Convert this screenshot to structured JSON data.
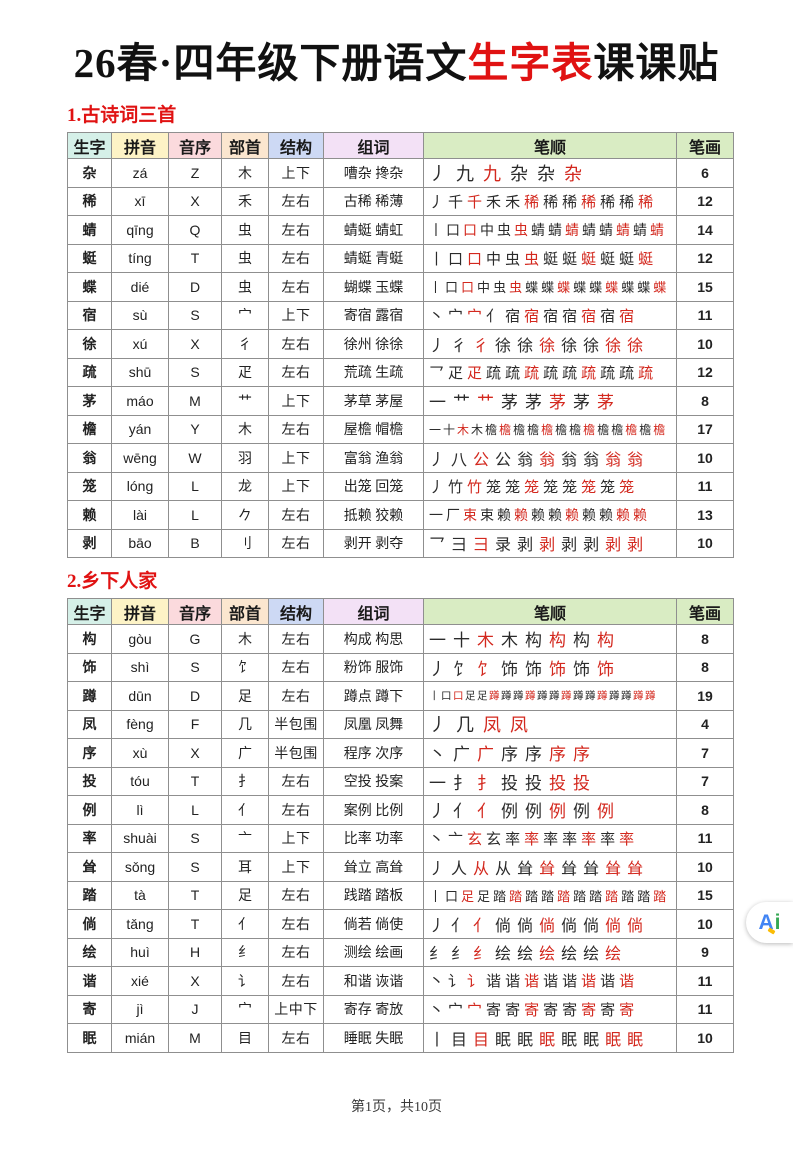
{
  "page": {
    "title_prefix": "26春·四年级下册语文",
    "title_highlight": "生字表",
    "title_suffix": "课课贴",
    "footer": "第1页，共10页",
    "badge_a": "A",
    "badge_i": "i"
  },
  "colors": {
    "title_red": "#e01212",
    "char_red": "#e02020",
    "pinyin_blue": "#3f9ee8",
    "count_red": "#e5463a",
    "stroke_dark": "#2b2b2b",
    "stroke_red": "#d3281e",
    "header_bg": [
      "#d5f0e8",
      "#fdf3c6",
      "#fbdadd",
      "#fbe6cf",
      "#cdd9f4",
      "#f3e1f6",
      "#d9ecc3",
      "#d9ecc3"
    ]
  },
  "table_headers": [
    "生字",
    "拼音",
    "音序",
    "部首",
    "结构",
    "组词",
    "笔顺",
    "笔画"
  ],
  "sections": [
    {
      "title": "1.古诗词三首",
      "rows": [
        {
          "char": "杂",
          "pinyin": "zá",
          "initial": "Z",
          "radical": "木",
          "structure": "上下",
          "words": "嘈杂 搀杂",
          "stroke_seq": "丿九九杂杂杂",
          "strokes": "6"
        },
        {
          "char": "稀",
          "pinyin": "xī",
          "initial": "X",
          "radical": "禾",
          "structure": "左右",
          "words": "古稀 稀薄",
          "stroke_seq": "丿千千禾禾稀稀稀稀稀稀稀",
          "strokes": "12"
        },
        {
          "char": "蜻",
          "pinyin": "qīng",
          "initial": "Q",
          "radical": "虫",
          "structure": "左右",
          "words": "蜻蜓 蜻虹",
          "stroke_seq": "丨口口中虫虫蜻蜻蜻蜻蜻蜻蜻蜻",
          "strokes": "14"
        },
        {
          "char": "蜓",
          "pinyin": "tíng",
          "initial": "T",
          "radical": "虫",
          "structure": "左右",
          "words": "蜻蜓 青蜓",
          "stroke_seq": "丨口口中虫虫蜓蜓蜓蜓蜓蜓",
          "strokes": "12"
        },
        {
          "char": "蝶",
          "pinyin": "dié",
          "initial": "D",
          "radical": "虫",
          "structure": "左右",
          "words": "蝴蝶 玉蝶",
          "stroke_seq": "丨口口中虫虫蝶蝶蝶蝶蝶蝶蝶蝶蝶",
          "strokes": "15"
        },
        {
          "char": "宿",
          "pinyin": "sù",
          "initial": "S",
          "radical": "宀",
          "structure": "上下",
          "words": "寄宿 露宿",
          "stroke_seq": "丶宀宀亻宿宿宿宿宿宿宿",
          "strokes": "11"
        },
        {
          "char": "徐",
          "pinyin": "xú",
          "initial": "X",
          "radical": "彳",
          "structure": "左右",
          "words": "徐州 徐徐",
          "stroke_seq": "丿彳彳徐徐徐徐徐徐徐",
          "strokes": "10"
        },
        {
          "char": "疏",
          "pinyin": "shū",
          "initial": "S",
          "radical": "疋",
          "structure": "左右",
          "words": "荒疏 生疏",
          "stroke_seq": "乛疋疋疏疏疏疏疏疏疏疏疏",
          "strokes": "12"
        },
        {
          "char": "茅",
          "pinyin": "máo",
          "initial": "M",
          "radical": "艹",
          "structure": "上下",
          "words": "茅草 茅屋",
          "stroke_seq": "一艹艹茅茅茅茅茅",
          "strokes": "8"
        },
        {
          "char": "檐",
          "pinyin": "yán",
          "initial": "Y",
          "radical": "木",
          "structure": "左右",
          "words": "屋檐 帽檐",
          "stroke_seq": "一十木木檐檐檐檐檐檐檐檐檐檐檐檐檐",
          "strokes": "17"
        },
        {
          "char": "翁",
          "pinyin": "wēng",
          "initial": "W",
          "radical": "羽",
          "structure": "上下",
          "words": "富翁 渔翁",
          "stroke_seq": "丿八公公翁翁翁翁翁翁",
          "strokes": "10"
        },
        {
          "char": "笼",
          "pinyin": "lóng",
          "initial": "L",
          "radical": "龙",
          "structure": "上下",
          "words": "出笼 回笼",
          "stroke_seq": "丿竹竹笼笼笼笼笼笼笼笼",
          "strokes": "11"
        },
        {
          "char": "赖",
          "pinyin": "lài",
          "initial": "L",
          "radical": "𠂊",
          "structure": "左右",
          "words": "抵赖 狡赖",
          "stroke_seq": "一厂束束赖赖赖赖赖赖赖赖赖",
          "strokes": "13"
        },
        {
          "char": "剥",
          "pinyin": "bāo",
          "initial": "B",
          "radical": "刂",
          "structure": "左右",
          "words": "剥开 剥夺",
          "stroke_seq": "乛彐彐录剥剥剥剥剥剥",
          "strokes": "10"
        }
      ]
    },
    {
      "title": "2.乡下人家",
      "rows": [
        {
          "char": "构",
          "pinyin": "gòu",
          "initial": "G",
          "radical": "木",
          "structure": "左右",
          "words": "构成 构思",
          "stroke_seq": "一十木木构构构构",
          "strokes": "8"
        },
        {
          "char": "饰",
          "pinyin": "shì",
          "initial": "S",
          "radical": "饣",
          "structure": "左右",
          "words": "粉饰 服饰",
          "stroke_seq": "丿饣饣饰饰饰饰饰",
          "strokes": "8"
        },
        {
          "char": "蹲",
          "pinyin": "dūn",
          "initial": "D",
          "radical": "足",
          "structure": "左右",
          "words": "蹲点 蹲下",
          "stroke_seq": "丨口口足足蹲蹲蹲蹲蹲蹲蹲蹲蹲蹲蹲蹲蹲蹲",
          "strokes": "19"
        },
        {
          "char": "凤",
          "pinyin": "fèng",
          "initial": "F",
          "radical": "几",
          "structure": "半包围",
          "words": "凤凰 凤舞",
          "stroke_seq": "丿几凤凤",
          "strokes": "4"
        },
        {
          "char": "序",
          "pinyin": "xù",
          "initial": "X",
          "radical": "广",
          "structure": "半包围",
          "words": "程序 次序",
          "stroke_seq": "丶广广序序序序",
          "strokes": "7"
        },
        {
          "char": "投",
          "pinyin": "tóu",
          "initial": "T",
          "radical": "扌",
          "structure": "左右",
          "words": "空投 投案",
          "stroke_seq": "一扌扌投投投投",
          "strokes": "7"
        },
        {
          "char": "例",
          "pinyin": "lì",
          "initial": "L",
          "radical": "亻",
          "structure": "左右",
          "words": "案例 比例",
          "stroke_seq": "丿亻亻例例例例例",
          "strokes": "8"
        },
        {
          "char": "率",
          "pinyin": "shuài",
          "initial": "S",
          "radical": "亠",
          "structure": "上下",
          "words": "比率 功率",
          "stroke_seq": "丶亠玄玄率率率率率率率",
          "strokes": "11"
        },
        {
          "char": "耸",
          "pinyin": "sǒng",
          "initial": "S",
          "radical": "耳",
          "structure": "上下",
          "words": "耸立 高耸",
          "stroke_seq": "丿人从从耸耸耸耸耸耸",
          "strokes": "10"
        },
        {
          "char": "踏",
          "pinyin": "tà",
          "initial": "T",
          "radical": "足",
          "structure": "左右",
          "words": "践踏 踏板",
          "stroke_seq": "丨口足足踏踏踏踏踏踏踏踏踏踏踏",
          "strokes": "15"
        },
        {
          "char": "倘",
          "pinyin": "tǎng",
          "initial": "T",
          "radical": "亻",
          "structure": "左右",
          "words": "倘若 倘使",
          "stroke_seq": "丿亻亻倘倘倘倘倘倘倘",
          "strokes": "10"
        },
        {
          "char": "绘",
          "pinyin": "huì",
          "initial": "H",
          "radical": "纟",
          "structure": "左右",
          "words": "测绘 绘画",
          "stroke_seq": "纟纟纟绘绘绘绘绘绘",
          "strokes": "9"
        },
        {
          "char": "谐",
          "pinyin": "xié",
          "initial": "X",
          "radical": "讠",
          "structure": "左右",
          "words": "和谐 诙谐",
          "stroke_seq": "丶讠讠谐谐谐谐谐谐谐谐",
          "strokes": "11"
        },
        {
          "char": "寄",
          "pinyin": "jì",
          "initial": "J",
          "radical": "宀",
          "structure": "上中下",
          "words": "寄存 寄放",
          "stroke_seq": "丶宀宀寄寄寄寄寄寄寄寄",
          "strokes": "11"
        },
        {
          "char": "眠",
          "pinyin": "mián",
          "initial": "M",
          "radical": "目",
          "structure": "左右",
          "words": "睡眠 失眠",
          "stroke_seq": "丨目目眠眠眠眠眠眠眠",
          "strokes": "10"
        }
      ]
    }
  ]
}
